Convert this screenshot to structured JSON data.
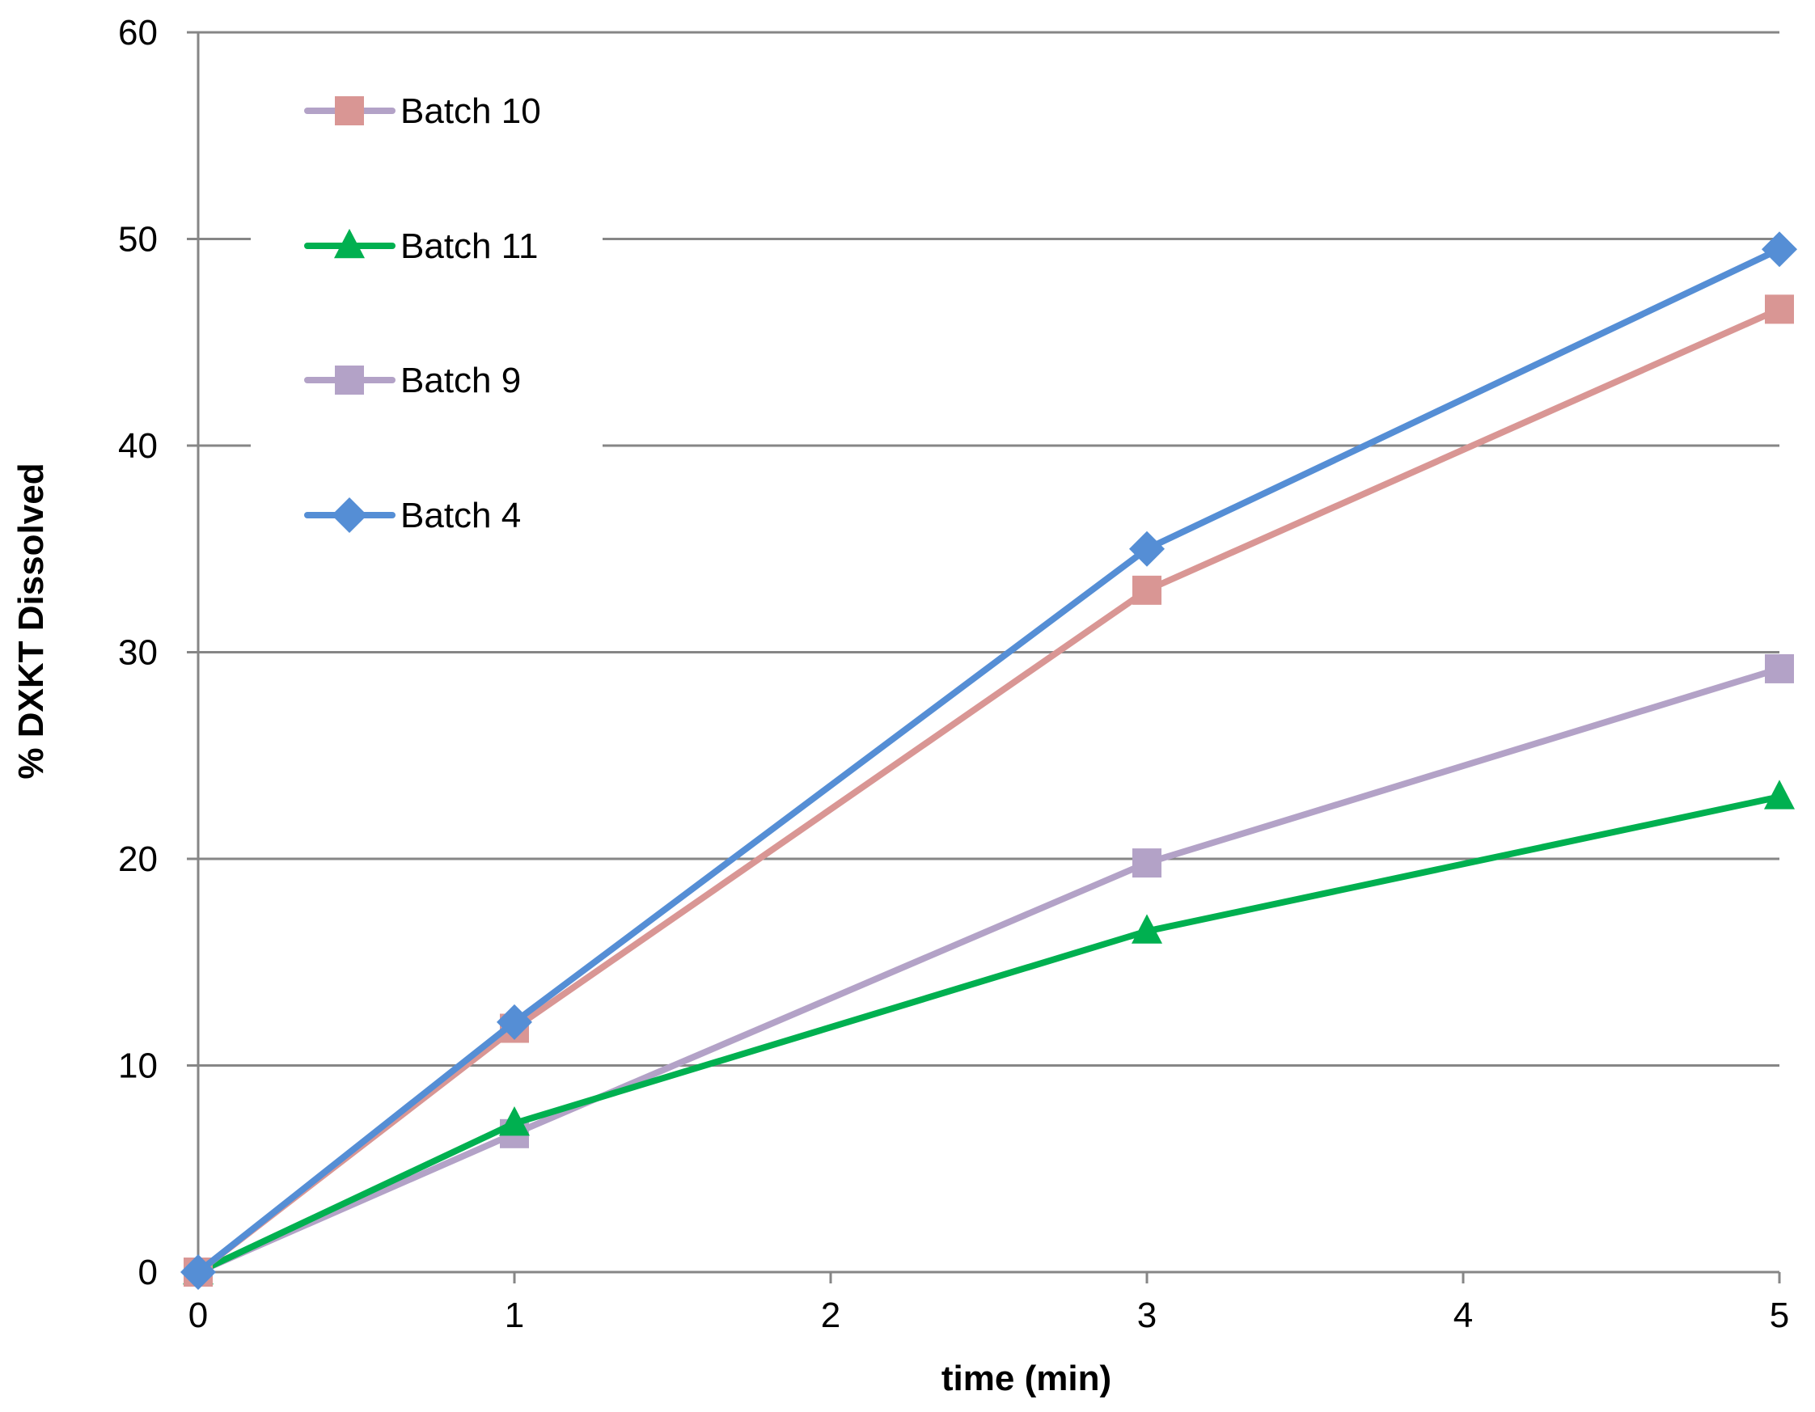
{
  "chart_data": {
    "type": "line",
    "title": "",
    "xlabel": "time (min)",
    "ylabel": "% DXKT Dissolved",
    "xlim": [
      0,
      5
    ],
    "ylim": [
      0,
      60
    ],
    "x_ticks": [
      "0",
      "1",
      "2",
      "3",
      "4",
      "5"
    ],
    "y_ticks": [
      "0",
      "10",
      "20",
      "30",
      "40",
      "50",
      "60"
    ],
    "grid": "horizontal",
    "legend_position": "top-left",
    "x": [
      0,
      1,
      3,
      5
    ],
    "series": [
      {
        "name": "Batch 10",
        "values": [
          0,
          11.8,
          33.0,
          46.6
        ],
        "color": "#D99694",
        "line_color": "#B3A2C7",
        "marker": "square"
      },
      {
        "name": "Batch 11",
        "values": [
          0,
          7.2,
          16.5,
          23.0
        ],
        "color": "#00B050",
        "line_color": "#00B050",
        "marker": "triangle"
      },
      {
        "name": "Batch 9",
        "values": [
          0,
          6.7,
          19.8,
          29.2
        ],
        "color": "#B3A2C7",
        "line_color": "#B3A2C7",
        "marker": "square"
      },
      {
        "name": "Batch 4",
        "values": [
          0,
          12.1,
          35.0,
          49.5
        ],
        "color": "#558ED5",
        "line_color": "#558ED5",
        "marker": "diamond"
      }
    ],
    "plot_series": [
      {
        "name": "Batch 9",
        "values": [
          0,
          6.7,
          19.8,
          29.2
        ],
        "line_color": "#B3A2C7",
        "marker_color": "#B3A2C7",
        "marker": "square"
      },
      {
        "name": "Batch 11",
        "values": [
          0,
          7.2,
          16.5,
          23.0
        ],
        "line_color": "#00B050",
        "marker_color": "#00B050",
        "marker": "triangle"
      },
      {
        "name": "Batch 10",
        "values": [
          0,
          11.8,
          33.0,
          46.6
        ],
        "line_color": "#D99694",
        "marker_color": "#D99694",
        "marker": "square"
      },
      {
        "name": "Batch 4",
        "values": [
          0,
          12.1,
          35.0,
          49.5
        ],
        "line_color": "#558ED5",
        "marker_color": "#558ED5",
        "marker": "diamond"
      }
    ],
    "colors": {
      "grid": "#868686",
      "axis": "#868686",
      "background": "#FFFFFF"
    }
  }
}
